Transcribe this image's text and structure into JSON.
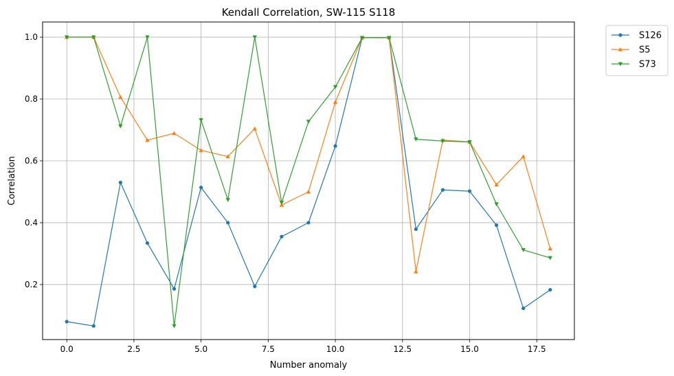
{
  "chart_data": {
    "type": "line",
    "title": "Kendall Correlation, SW-115  S118",
    "xlabel": "Number anomaly",
    "ylabel": "Correlation",
    "xlim": [
      -0.9,
      18.9
    ],
    "ylim": [
      0.022,
      1.049
    ],
    "xticks": [
      0.0,
      2.5,
      5.0,
      7.5,
      10.0,
      12.5,
      15.0,
      17.5
    ],
    "xtick_labels": [
      "0.0",
      "2.5",
      "5.0",
      "7.5",
      "10.0",
      "12.5",
      "15.0",
      "17.5"
    ],
    "yticks": [
      0.2,
      0.4,
      0.6,
      0.8,
      1.0
    ],
    "ytick_labels": [
      "0.2",
      "0.4",
      "0.6",
      "0.8",
      "1.0"
    ],
    "grid": true,
    "legend_position": "outside-top-right",
    "x": [
      0,
      1,
      2,
      3,
      4,
      5,
      6,
      7,
      8,
      9,
      10,
      11,
      12,
      13,
      14,
      15,
      16,
      17,
      18
    ],
    "series": [
      {
        "name": "S126",
        "color": "#1f77b4",
        "marker": "circle",
        "values": [
          0.08,
          0.066,
          0.53,
          0.334,
          0.186,
          0.514,
          0.4,
          0.194,
          0.355,
          0.4,
          0.648,
          0.998,
          0.998,
          0.379,
          0.506,
          0.502,
          0.392,
          0.123,
          0.183
        ]
      },
      {
        "name": "S5",
        "color": "#ff7f0e",
        "marker": "triangle-up",
        "values": [
          1.0,
          1.0,
          0.806,
          0.667,
          0.689,
          0.634,
          0.614,
          0.704,
          0.457,
          0.5,
          0.79,
          0.998,
          0.998,
          0.242,
          0.667,
          0.661,
          0.523,
          0.614,
          0.316
        ]
      },
      {
        "name": "S73",
        "color": "#2ca02c",
        "marker": "triangle-down",
        "values": [
          1.0,
          1.0,
          0.712,
          1.0,
          0.066,
          0.732,
          0.474,
          1.0,
          0.465,
          0.727,
          0.839,
          0.998,
          0.998,
          0.67,
          0.664,
          0.661,
          0.46,
          0.312,
          0.286
        ]
      }
    ]
  }
}
